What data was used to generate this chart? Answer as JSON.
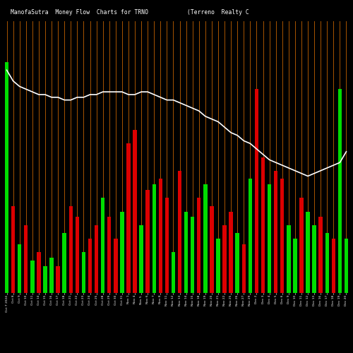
{
  "title_left": "ManofaSutra  Money Flow  Charts for TRNO",
  "title_right": "(Terreno  Realty C",
  "background_color": "#000000",
  "bar_colors_pattern": [
    "green",
    "red",
    "green",
    "red",
    "green",
    "red",
    "green",
    "green",
    "red",
    "green",
    "red",
    "red",
    "green",
    "red",
    "red",
    "green",
    "red",
    "red",
    "green",
    "red",
    "red",
    "green",
    "red",
    "green",
    "red",
    "red",
    "green",
    "red",
    "green",
    "green",
    "red",
    "green",
    "red",
    "green",
    "red",
    "red",
    "green",
    "red",
    "green",
    "red",
    "red",
    "green",
    "red",
    "red",
    "green",
    "green",
    "red",
    "green",
    "green",
    "red",
    "green",
    "red",
    "green",
    "green"
  ],
  "bar_heights": [
    85,
    32,
    18,
    25,
    12,
    15,
    10,
    13,
    10,
    22,
    32,
    28,
    15,
    20,
    25,
    35,
    28,
    20,
    30,
    55,
    60,
    25,
    38,
    40,
    42,
    35,
    15,
    45,
    30,
    28,
    35,
    40,
    32,
    20,
    25,
    30,
    22,
    18,
    42,
    75,
    50,
    40,
    45,
    42,
    25,
    20,
    35,
    30,
    25,
    28,
    22,
    20,
    75,
    20
  ],
  "line_data": [
    82,
    78,
    76,
    75,
    74,
    73,
    73,
    72,
    72,
    71,
    71,
    72,
    72,
    73,
    73,
    74,
    74,
    74,
    74,
    73,
    73,
    74,
    74,
    73,
    72,
    71,
    71,
    70,
    69,
    68,
    67,
    65,
    64,
    63,
    61,
    59,
    58,
    56,
    55,
    53,
    51,
    49,
    48,
    47,
    46,
    45,
    44,
    43,
    44,
    45,
    46,
    47,
    48,
    52
  ],
  "n_bars": 54,
  "xlabels": [
    "Oct 7 2024",
    "Oct 8",
    "Oct 9",
    "Oct 10",
    "Oct 11",
    "Oct 14",
    "Oct 15",
    "Oct 16",
    "Oct 17",
    "Oct 18",
    "Oct 21",
    "Oct 22",
    "Oct 23",
    "Oct 24",
    "Oct 25",
    "Oct 28",
    "Oct 29",
    "Oct 30",
    "Oct 31",
    "Nov 1",
    "Nov 4",
    "Nov 5",
    "Nov 6",
    "Nov 7",
    "Nov 8",
    "Nov 11",
    "Nov 12",
    "Nov 13",
    "Nov 14",
    "Nov 15",
    "Nov 18",
    "Nov 19",
    "Nov 20",
    "Nov 21",
    "Nov 22",
    "Nov 25",
    "Nov 26",
    "Nov 27",
    "Nov 29",
    "Dec 2",
    "Dec 3",
    "Dec 4",
    "Dec 5",
    "Dec 6",
    "Dec 9",
    "Dec 10",
    "Dec 11",
    "Dec 12",
    "Dec 13",
    "Dec 16",
    "Dec 17",
    "Dec 18",
    "Dec 19",
    "Dec 20"
  ],
  "orange_line_color": "#b35a00",
  "white_line_color": "#ffffff",
  "green_color": "#00dd00",
  "red_color": "#dd0000",
  "ymax": 100
}
